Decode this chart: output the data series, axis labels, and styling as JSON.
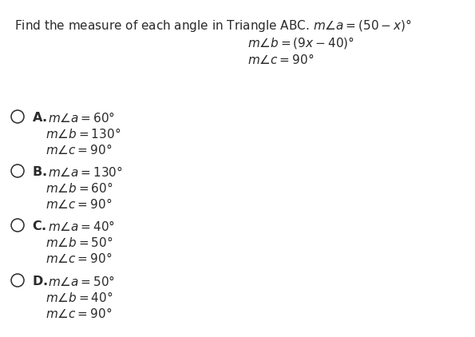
{
  "bg_color": "#ffffff",
  "text_color": "#2a2a2a",
  "title_normal": "Find the measure of each angle in Triangle ABC.",
  "title_math1": "$m\\angle a = (50 - x)°$",
  "title_math2": "$m\\angle b = (9x - 40)°$",
  "title_math3": "$m\\angle c = 90°$",
  "options": [
    {
      "label": "A",
      "line1": "$m\\angle a = 60°$",
      "line2": "$m\\angle b = 130°$",
      "line3": "$m\\angle c = 90°$"
    },
    {
      "label": "B",
      "line1": "$m\\angle a = 130°$",
      "line2": "$m\\angle b = 60°$",
      "line3": "$m\\angle c = 90°$"
    },
    {
      "label": "C",
      "line1": "$m\\angle a = 40°$",
      "line2": "$m\\angle b = 50°$",
      "line3": "$m\\angle c = 90°$"
    },
    {
      "label": "D",
      "line1": "$m\\angle a = 50°$",
      "line2": "$m\\angle b = 40°$",
      "line3": "$m\\angle c = 90°$"
    }
  ],
  "font_size_title": 11.0,
  "font_size_body": 11.0,
  "font_size_label": 11.5
}
